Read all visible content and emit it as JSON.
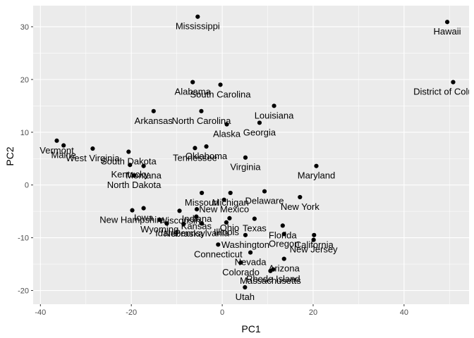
{
  "chart_data": {
    "type": "scatter",
    "xlabel": "PC1",
    "ylabel": "PC2",
    "xlim": [
      -41.6,
      54.3
    ],
    "ylim": [
      -22.6,
      34.0
    ],
    "x_ticks": [
      -40,
      -20,
      0,
      20,
      40
    ],
    "y_ticks": [
      -20,
      -10,
      0,
      10,
      20,
      30
    ],
    "x_tick_labels": [
      "-40",
      "-20",
      "0",
      "20",
      "40"
    ],
    "y_tick_labels": [
      "-20",
      "-10",
      "0",
      "10",
      "20",
      "30"
    ],
    "grid": true,
    "background": "#ebebeb",
    "grid_major_color": "#ffffff",
    "point_color": "#000000",
    "points": [
      {
        "label": "Mississippi",
        "x": -5.4,
        "y": 31.9
      },
      {
        "label": "Hawaii",
        "x": 49.5,
        "y": 30.9
      },
      {
        "label": "Alabama",
        "x": -6.5,
        "y": 19.5
      },
      {
        "label": "South Carolina",
        "x": -0.4,
        "y": 19.0
      },
      {
        "label": "District of Columbia",
        "x": 50.8,
        "y": 19.5
      },
      {
        "label": "Louisiana",
        "x": 11.4,
        "y": 15.0
      },
      {
        "label": "Arkansas",
        "x": -15.1,
        "y": 14.0
      },
      {
        "label": "North Carolina",
        "x": -4.6,
        "y": 14.0
      },
      {
        "label": "Alaska",
        "x": 1.0,
        "y": 11.5
      },
      {
        "label": "Georgia",
        "x": 8.2,
        "y": 11.8
      },
      {
        "label": "Vermont",
        "x": -36.4,
        "y": 8.4
      },
      {
        "label": "Maine",
        "x": -34.9,
        "y": 7.5
      },
      {
        "label": "West Virginia",
        "x": -28.5,
        "y": 6.9
      },
      {
        "label": "South Dakota",
        "x": -20.6,
        "y": 6.3
      },
      {
        "label": "Tennessee",
        "x": -6.0,
        "y": 7.0
      },
      {
        "label": "Oklahoma",
        "x": -3.5,
        "y": 7.3
      },
      {
        "label": "Virginia",
        "x": 5.1,
        "y": 5.2
      },
      {
        "label": "Kentucky",
        "x": -20.3,
        "y": 3.8
      },
      {
        "label": "Montana",
        "x": -17.3,
        "y": 3.6
      },
      {
        "label": "Maryland",
        "x": 20.7,
        "y": 3.6
      },
      {
        "label": "North Dakota",
        "x": -19.4,
        "y": 1.8
      },
      {
        "label": "Missouri",
        "x": -4.5,
        "y": -1.5
      },
      {
        "label": "Michigan",
        "x": 1.8,
        "y": -1.5
      },
      {
        "label": "Delaware",
        "x": 9.3,
        "y": -1.2
      },
      {
        "label": "New York",
        "x": 17.1,
        "y": -2.3
      },
      {
        "label": "New Mexico",
        "x": 0.4,
        "y": -2.8
      },
      {
        "label": "Iowa",
        "x": -17.3,
        "y": -4.4
      },
      {
        "label": "Indiana",
        "x": -5.6,
        "y": -4.6
      },
      {
        "label": "New Hampshire",
        "x": -19.8,
        "y": -4.8
      },
      {
        "label": "Wisconsin",
        "x": -9.4,
        "y": -4.9
      },
      {
        "label": "Kansas",
        "x": -5.7,
        "y": -6.0
      },
      {
        "label": "Ohio",
        "x": 1.6,
        "y": -6.3
      },
      {
        "label": "Texas",
        "x": 7.1,
        "y": -6.4
      },
      {
        "label": "Wyoming",
        "x": -13.8,
        "y": -6.6
      },
      {
        "label": "Idaho",
        "x": -12.2,
        "y": -7.3
      },
      {
        "label": "Nebraska",
        "x": -8.5,
        "y": -7.4
      },
      {
        "label": "Pennsylvania",
        "x": -4.5,
        "y": -7.3
      },
      {
        "label": "Illinois",
        "x": 0.9,
        "y": -7.1
      },
      {
        "label": "Florida",
        "x": 13.3,
        "y": -7.7
      },
      {
        "label": "California",
        "x": 20.2,
        "y": -9.5
      },
      {
        "label": "New Jersey",
        "x": 20.1,
        "y": -10.4
      },
      {
        "label": "Washington",
        "x": 5.1,
        "y": -9.5
      },
      {
        "label": "Oregon",
        "x": 13.6,
        "y": -9.3
      },
      {
        "label": "Connecticut",
        "x": -0.9,
        "y": -11.3
      },
      {
        "label": "Arizona",
        "x": 13.6,
        "y": -14.0
      },
      {
        "label": "Nevada",
        "x": 6.2,
        "y": -12.8
      },
      {
        "label": "Colorado",
        "x": 4.1,
        "y": -14.7
      },
      {
        "label": "Massachusetts",
        "x": 10.6,
        "y": -16.3
      },
      {
        "label": "Rhode Island",
        "x": 11.2,
        "y": -16.0
      },
      {
        "label": "Utah",
        "x": 5.0,
        "y": -19.4
      }
    ]
  }
}
